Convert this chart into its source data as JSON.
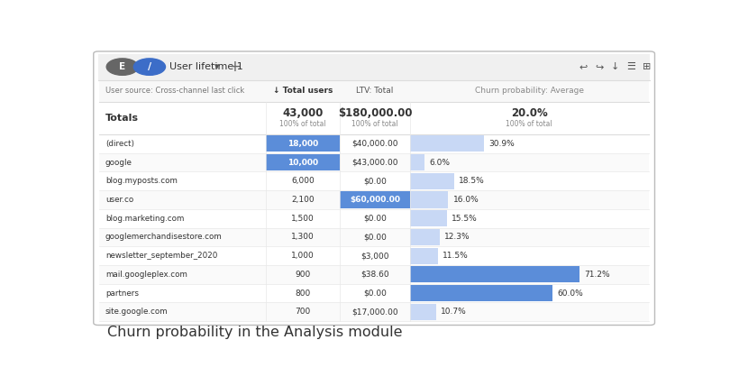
{
  "title": "Churn probability in the Analysis module",
  "header_row": [
    "User source: Cross-channel last click",
    "↓ Total users",
    "LTV: Total",
    "Churn probability: Average"
  ],
  "totals_row": {
    "label": "Totals",
    "total_users": "43,000",
    "total_users_sub": "100% of total",
    "ltv": "$180,000.00",
    "ltv_sub": "100% of total",
    "churn": "20.0%",
    "churn_sub": "100% of total"
  },
  "rows": [
    {
      "source": "(direct)",
      "users": "18,000",
      "ltv": "$40,000.00",
      "churn": "30.9%",
      "users_highlighted": true,
      "ltv_highlighted": false,
      "churn_value": 30.9
    },
    {
      "source": "google",
      "users": "10,000",
      "ltv": "$43,000.00",
      "churn": "6.0%",
      "users_highlighted": true,
      "ltv_highlighted": false,
      "churn_value": 6.0
    },
    {
      "source": "blog.myposts.com",
      "users": "6,000",
      "ltv": "$0.00",
      "churn": "18.5%",
      "users_highlighted": false,
      "ltv_highlighted": false,
      "churn_value": 18.5
    },
    {
      "source": "user.co",
      "users": "2,100",
      "ltv": "$60,000.00",
      "churn": "16.0%",
      "users_highlighted": false,
      "ltv_highlighted": true,
      "churn_value": 16.0
    },
    {
      "source": "blog.marketing.com",
      "users": "1,500",
      "ltv": "$0.00",
      "churn": "15.5%",
      "users_highlighted": false,
      "ltv_highlighted": false,
      "churn_value": 15.5
    },
    {
      "source": "googlemerchandisestore.com",
      "users": "1,300",
      "ltv": "$0.00",
      "churn": "12.3%",
      "users_highlighted": false,
      "ltv_highlighted": false,
      "churn_value": 12.3
    },
    {
      "source": "newsletter_september_2020",
      "users": "1,000",
      "ltv": "$3,000",
      "churn": "11.5%",
      "users_highlighted": false,
      "ltv_highlighted": false,
      "churn_value": 11.5
    },
    {
      "source": "mail.googleplex.com",
      "users": "900",
      "ltv": "$38.60",
      "churn": "71.2%",
      "users_highlighted": false,
      "ltv_highlighted": false,
      "churn_value": 71.2
    },
    {
      "source": "partners",
      "users": "800",
      "ltv": "$0.00",
      "churn": "60.0%",
      "users_highlighted": false,
      "ltv_highlighted": false,
      "churn_value": 60.0
    },
    {
      "source": "site.google.com",
      "users": "700",
      "ltv": "$17,000.00",
      "churn": "10.7%",
      "users_highlighted": false,
      "ltv_highlighted": false,
      "churn_value": 10.7
    }
  ],
  "highlight_blue_dark": "#5b8dd9",
  "highlight_blue_light": "#c8d8f5",
  "churn_bar_dark": "#5b8dd9",
  "churn_bar_light": "#c8d8f5",
  "text_dark": "#333333",
  "text_medium": "#555555",
  "text_light": "#888888"
}
